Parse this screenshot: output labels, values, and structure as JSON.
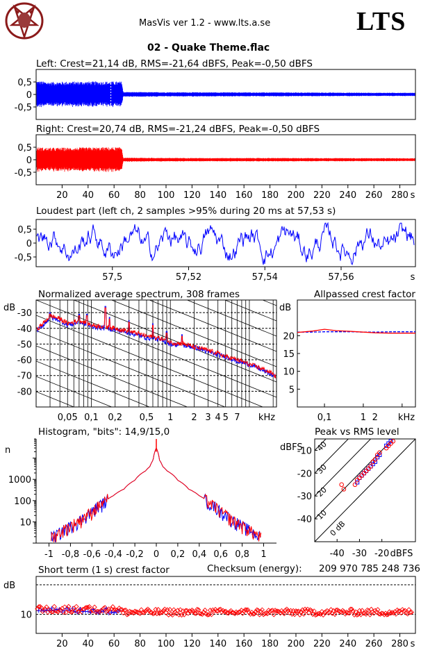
{
  "header": {
    "app_title": "MasVis ver 1.2 - www.lts.a.se",
    "brand": "LTS",
    "track_title": "02 - Quake Theme.flac",
    "logo_icon": "pentagram-logo-icon"
  },
  "colors": {
    "left": "#0000ff",
    "right": "#ff0000",
    "grid": "#000000"
  },
  "chart_data": [
    {
      "id": "left_waveform",
      "type": "line",
      "title": "Left: Crest=21,14 dB, RMS=-21,64 dBFS, Peak=-0,50 dBFS",
      "ylim": [
        -1,
        1
      ],
      "xlim": [
        0,
        292
      ],
      "yticks": [
        "0,5",
        "0",
        "-0,5"
      ],
      "ytick_values": [
        0.5,
        0,
        -0.5
      ],
      "loud_marker_s": 57.53,
      "envelope": [
        [
          0,
          0.55
        ],
        [
          10,
          0.5
        ],
        [
          30,
          0.52
        ],
        [
          60,
          0.52
        ],
        [
          66,
          0.52
        ],
        [
          67,
          0.1
        ],
        [
          100,
          0.09
        ],
        [
          200,
          0.08
        ],
        [
          260,
          0.07
        ],
        [
          292,
          0.07
        ]
      ]
    },
    {
      "id": "right_waveform",
      "type": "line",
      "title": "Right: Crest=20,74 dB, RMS=-21,24 dBFS, Peak=-0,50 dBFS",
      "ylim": [
        -1,
        1
      ],
      "xlim": [
        0,
        292
      ],
      "yticks": [
        "0,5",
        "0",
        "-0,5"
      ],
      "ytick_values": [
        0.5,
        0,
        -0.5
      ],
      "xticks": [
        "20",
        "40",
        "60",
        "80",
        "100",
        "120",
        "140",
        "160",
        "180",
        "200",
        "220",
        "240",
        "260",
        "280"
      ],
      "xtick_values": [
        20,
        40,
        60,
        80,
        100,
        120,
        140,
        160,
        180,
        200,
        220,
        240,
        260,
        280
      ],
      "xunit": "s",
      "envelope": [
        [
          0,
          0.5
        ],
        [
          10,
          0.48
        ],
        [
          60,
          0.5
        ],
        [
          66,
          0.5
        ],
        [
          67,
          0.08
        ],
        [
          120,
          0.07
        ],
        [
          200,
          0.07
        ],
        [
          292,
          0.06
        ]
      ]
    },
    {
      "id": "loudest_part",
      "type": "line",
      "title": "Loudest part (left  ch, 2 samples >95% during 20 ms at 57,53 s)",
      "xlim": [
        57.48,
        57.5795
      ],
      "ylim": [
        -0.85,
        0.85
      ],
      "yticks": [
        "0,5",
        "0",
        "-0,5"
      ],
      "ytick_values": [
        0.5,
        0,
        -0.5
      ],
      "xticks": [
        "57,5",
        "57,52",
        "57,54",
        "57,56"
      ],
      "xtick_values": [
        57.5,
        57.52,
        57.54,
        57.56
      ],
      "xunit": "s"
    },
    {
      "id": "avg_spectrum",
      "type": "line",
      "log_x": true,
      "title": "Normalized average spectrum, 308 frames",
      "ylabel": "dB",
      "xunit": "kHz",
      "xlim_khz": [
        0.02,
        22.05
      ],
      "ylim": [
        -90,
        -22
      ],
      "yticks": [
        "-30",
        "-40",
        "-50",
        "-60",
        "-70",
        "-80"
      ],
      "ytick_values": [
        -30,
        -40,
        -50,
        -60,
        -70,
        -80
      ],
      "xticks": [
        "0,05",
        "0,1",
        "0,2",
        "0,5",
        "1",
        "2",
        "3",
        "4",
        "5",
        "7"
      ],
      "xtick_values": [
        0.05,
        0.1,
        0.2,
        0.5,
        1,
        2,
        3,
        4,
        5,
        7
      ],
      "series": [
        {
          "channel": "left",
          "x_khz": [
            0.02,
            0.03,
            0.04,
            0.05,
            0.07,
            0.1,
            0.15,
            0.2,
            0.3,
            0.5,
            0.7,
            1,
            1.5,
            2,
            3,
            4,
            5,
            7,
            10,
            15,
            20,
            22
          ],
          "y_db": [
            -42,
            -33,
            -35,
            -38,
            -36,
            -39,
            -40,
            -41,
            -43,
            -46,
            -47,
            -50,
            -51,
            -52,
            -55,
            -57,
            -58,
            -61,
            -63,
            -67,
            -70,
            -71
          ]
        },
        {
          "channel": "right",
          "x_khz": [
            0.02,
            0.03,
            0.04,
            0.05,
            0.07,
            0.1,
            0.15,
            0.2,
            0.3,
            0.5,
            0.7,
            1,
            1.5,
            2,
            3,
            4,
            5,
            7,
            10,
            15,
            20,
            22
          ],
          "y_db": [
            -41,
            -32,
            -34,
            -37,
            -35,
            -38,
            -39,
            -40,
            -42,
            -45,
            -46,
            -49,
            -50,
            -52,
            -54,
            -56,
            -58,
            -60,
            -63,
            -66,
            -69,
            -71
          ]
        }
      ],
      "peaks": [
        {
          "khz": 0.03,
          "db": -30
        },
        {
          "khz": 0.07,
          "db": -31
        },
        {
          "khz": 0.088,
          "db": -31
        },
        {
          "khz": 0.15,
          "db": -26
        },
        {
          "khz": 0.17,
          "db": -33
        },
        {
          "khz": 0.3,
          "db": -35
        },
        {
          "khz": 0.6,
          "db": -37
        },
        {
          "khz": 0.9,
          "db": -42
        },
        {
          "khz": 1.4,
          "db": -44
        }
      ]
    },
    {
      "id": "allpassed_crest",
      "type": "line",
      "log_x": true,
      "title": "Allpassed crest factor",
      "ylabel": "dB",
      "xunit": "kHz",
      "xlim_khz": [
        0.02,
        22.05
      ],
      "ylim": [
        0,
        30
      ],
      "yticks": [
        "20",
        "15",
        "10",
        "5"
      ],
      "ytick_values": [
        20,
        15,
        10,
        5
      ],
      "xticks": [
        "0,1",
        "1",
        "2"
      ],
      "xtick_values": [
        0.1,
        1,
        2
      ],
      "series": [
        {
          "channel": "left",
          "x_khz": [
            0.02,
            0.05,
            0.1,
            0.2,
            0.5,
            1,
            2,
            5,
            10,
            22
          ],
          "y_db": [
            21,
            21,
            21.1,
            21.1,
            21.1,
            21.0,
            21.0,
            21.1,
            21.1,
            21.1
          ]
        },
        {
          "channel": "right",
          "x_khz": [
            0.02,
            0.05,
            0.1,
            0.2,
            0.5,
            1,
            2,
            5,
            10,
            22
          ],
          "y_db": [
            20.9,
            21.3,
            21.8,
            21.4,
            21.2,
            21.0,
            20.8,
            20.7,
            20.7,
            20.7
          ]
        }
      ]
    },
    {
      "id": "histogram",
      "type": "line",
      "log_y": true,
      "title": "Histogram, \"bits\": 14,9/15,0",
      "ylabel": "n",
      "xlim": [
        -1.12,
        1.12
      ],
      "ylim_log": [
        1,
        80000
      ],
      "yticks": [
        "1000",
        "100",
        "10"
      ],
      "ytick_values": [
        1000,
        100,
        10
      ],
      "xticks": [
        "-1",
        "-0,8",
        "-0,6",
        "-0,4",
        "-0,2",
        "0",
        "0,2",
        "0,4",
        "0,6",
        "0,8",
        "1"
      ],
      "xtick_values": [
        -1,
        -0.8,
        -0.6,
        -0.4,
        -0.2,
        0,
        0.2,
        0.4,
        0.6,
        0.8,
        1
      ],
      "curve_abs_x": [
        0,
        0.03,
        0.06,
        0.1,
        0.15,
        0.2,
        0.3,
        0.4,
        0.5,
        0.6,
        0.7,
        0.8,
        0.9,
        0.95
      ],
      "curve_n": [
        30000,
        8000,
        4000,
        2500,
        1700,
        900,
        350,
        170,
        70,
        28,
        12,
        6,
        3,
        2
      ]
    },
    {
      "id": "peak_vs_rms",
      "type": "scatter",
      "title": "Peak vs RMS level",
      "ylabel": "dBFS",
      "xlabel": "dBFS",
      "xlim": [
        -50,
        -5
      ],
      "ylim": [
        -50,
        -5
      ],
      "yticks": [
        "-10",
        "-20",
        "-30",
        "-40"
      ],
      "ytick_values": [
        -10,
        -20,
        -30,
        -40
      ],
      "xticks": [
        "-40",
        "-30",
        "-20"
      ],
      "xtick_values": [
        -40,
        -30,
        -20
      ],
      "crest_lines": [
        "0 dB",
        "10",
        "20",
        "30",
        "40"
      ],
      "crest_values": [
        0,
        10,
        20,
        30,
        40
      ],
      "points_left": [
        [
          -31,
          -24
        ],
        [
          -30,
          -22
        ],
        [
          -29,
          -21
        ],
        [
          -28,
          -20
        ],
        [
          -27,
          -19
        ],
        [
          -26,
          -18
        ],
        [
          -25,
          -17
        ],
        [
          -24,
          -16
        ],
        [
          -23,
          -15
        ],
        [
          -22,
          -13
        ],
        [
          -21,
          -12
        ],
        [
          -18,
          -8
        ],
        [
          -17,
          -7
        ],
        [
          -16,
          -6
        ]
      ],
      "points_right": [
        [
          -32,
          -25
        ],
        [
          -31,
          -23
        ],
        [
          -30,
          -22
        ],
        [
          -29,
          -21
        ],
        [
          -28,
          -20
        ],
        [
          -27,
          -19
        ],
        [
          -26,
          -18
        ],
        [
          -25,
          -17
        ],
        [
          -24,
          -15
        ],
        [
          -23,
          -14
        ],
        [
          -22,
          -12
        ],
        [
          -21,
          -11
        ],
        [
          -18,
          -9
        ],
        [
          -17,
          -8
        ],
        [
          -16,
          -7
        ],
        [
          -15,
          -6
        ],
        [
          -38,
          -25
        ],
        [
          -37,
          -27
        ]
      ]
    },
    {
      "id": "short_term_crest",
      "type": "scatter",
      "title": "Short term (1 s) crest factor",
      "ylabel": "dB",
      "xunit": "s",
      "xlim": [
        0,
        292
      ],
      "ylim": [
        5,
        20
      ],
      "yticks": [
        "10"
      ],
      "ytick_values": [
        10
      ],
      "xticks": [
        "20",
        "40",
        "60",
        "80",
        "100",
        "120",
        "140",
        "160",
        "180",
        "200",
        "220",
        "240",
        "260",
        "280"
      ],
      "xtick_values": [
        20,
        40,
        60,
        80,
        100,
        120,
        140,
        160,
        180,
        200,
        220,
        240,
        260,
        280
      ]
    }
  ],
  "checksum": {
    "label": "Checksum (energy):",
    "value": "209 970 785 248 736"
  }
}
